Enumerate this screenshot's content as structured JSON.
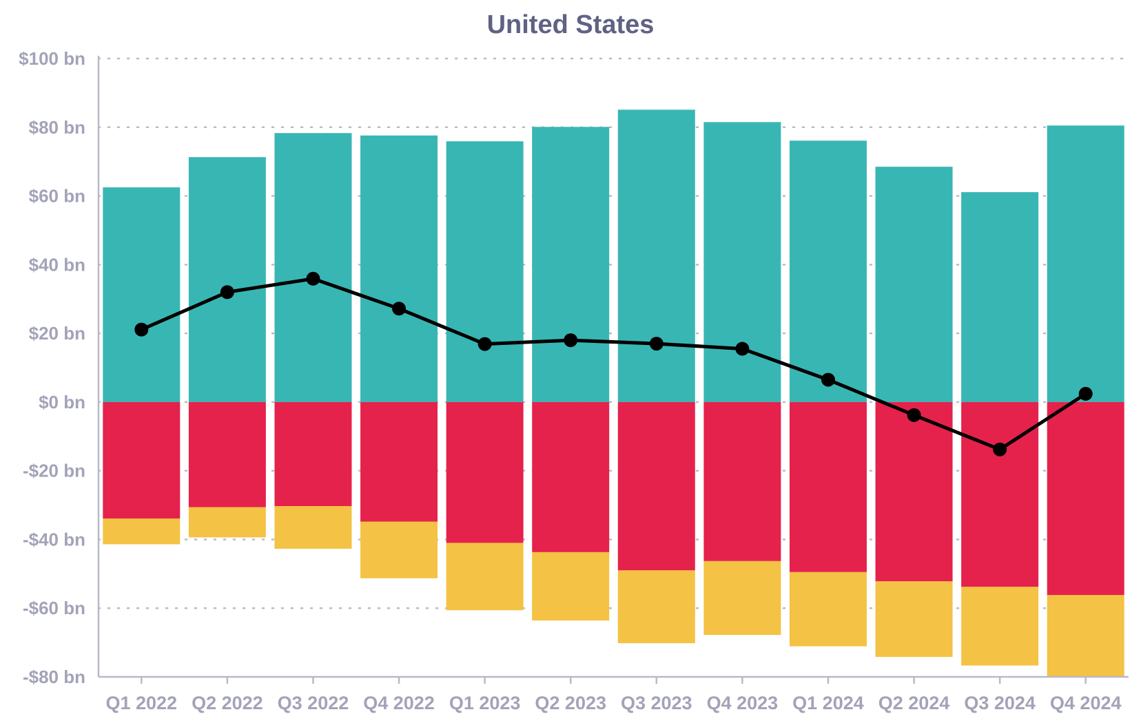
{
  "chart_data": {
    "type": "bar",
    "title": "United States",
    "xlabel": "",
    "ylabel": "",
    "ylim": [
      -80,
      100
    ],
    "y_ticks": [
      100,
      80,
      60,
      40,
      20,
      0,
      -20,
      -40,
      -60,
      -80
    ],
    "y_tick_labels": [
      "$100 bn",
      "$80 bn",
      "$60 bn",
      "$40 bn",
      "$20 bn",
      "$0 bn",
      "-$20 bn",
      "-$40 bn",
      "-$60 bn",
      "-$80 bn"
    ],
    "grid": true,
    "stacked": true,
    "categories": [
      "Q1 2022",
      "Q2 2022",
      "Q3 2022",
      "Q4 2022",
      "Q1 2023",
      "Q2 2023",
      "Q3 2023",
      "Q4 2023",
      "Q1 2024",
      "Q2 2024",
      "Q3 2024",
      "Q4 2024"
    ],
    "series": [
      {
        "type": "bar",
        "color": "#38b6b4",
        "values": [
          62.5,
          71.3,
          78.3,
          77.6,
          75.9,
          80.1,
          85.1,
          81.5,
          76.1,
          68.5,
          61.1,
          80.5
        ]
      },
      {
        "type": "bar",
        "color": "#e5224c",
        "values": [
          -33.9,
          -30.6,
          -30.3,
          -34.8,
          -41.0,
          -43.7,
          -49.0,
          -46.3,
          -49.5,
          -52.2,
          -53.8,
          -56.2
        ]
      },
      {
        "type": "bar",
        "color": "#f4c244",
        "values": [
          -7.5,
          -8.8,
          -12.4,
          -16.5,
          -19.6,
          -19.9,
          -21.2,
          -21.5,
          -21.6,
          -22.0,
          -22.9,
          -23.8
        ]
      },
      {
        "type": "line",
        "color": "#000000",
        "values": [
          21.1,
          32.0,
          35.9,
          27.2,
          16.9,
          18.0,
          17.0,
          15.5,
          6.5,
          -3.8,
          -13.8,
          2.4
        ]
      }
    ]
  }
}
